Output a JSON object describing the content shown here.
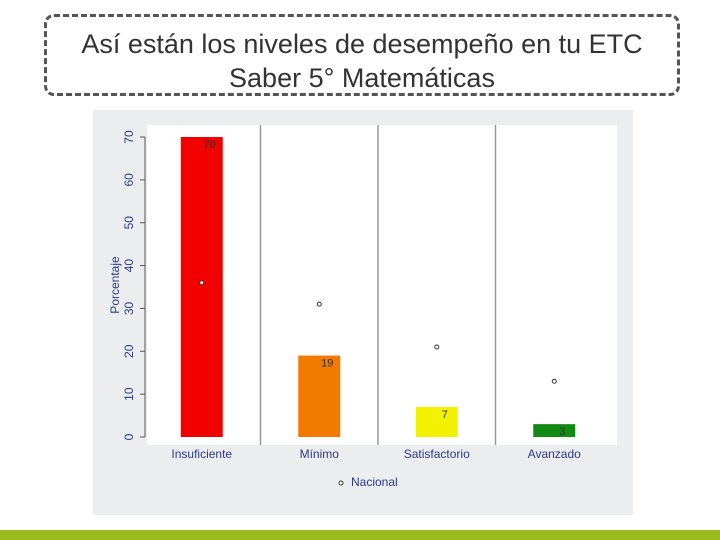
{
  "chart_data": {
    "type": "bar",
    "title": "Así están los niveles de desempeño en tu ETC Saber 5° Matemáticas",
    "y_label": "Porcentaje",
    "categories": [
      "Insuficiente",
      "Mínimo",
      "Satisfactorio",
      "Avanzado"
    ],
    "values": [
      70,
      19,
      7,
      3
    ],
    "colors": [
      "#f20000",
      "#f27a00",
      "#f2f200",
      "#138a13"
    ],
    "markers": {
      "name": "Nacional",
      "values": [
        36,
        31,
        21,
        13
      ]
    },
    "ylim": [
      0,
      70
    ],
    "yticks": [
      0,
      10,
      20,
      30,
      40,
      50,
      60,
      70
    ],
    "grid": true
  }
}
